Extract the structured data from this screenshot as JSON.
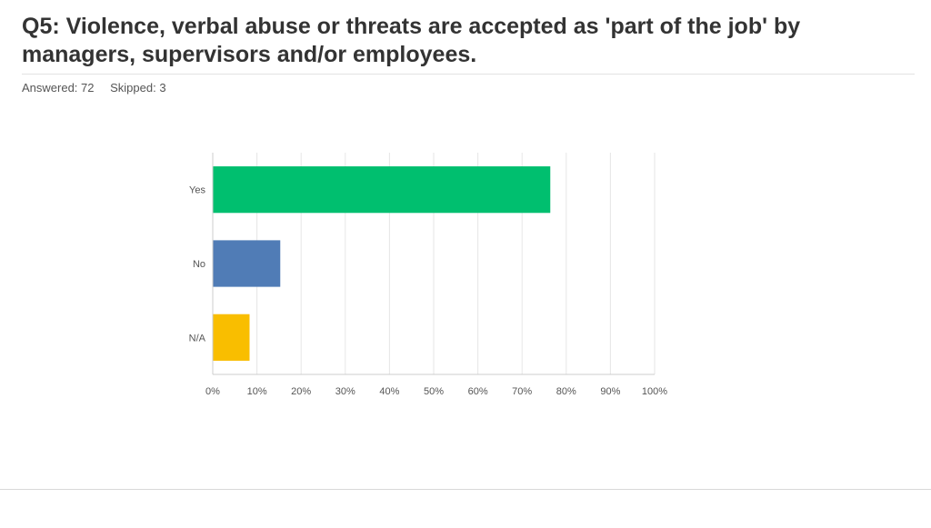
{
  "header": {
    "title": "Q5: Violence, verbal abuse or threats are accepted as 'part of the job' by managers, supervisors and/or employees.",
    "answered": "Answered: 72",
    "skipped": "Skipped: 3"
  },
  "chart_data": {
    "type": "bar",
    "orientation": "horizontal",
    "categories": [
      "Yes",
      "No",
      "N/A"
    ],
    "values": [
      76.39,
      15.28,
      8.33
    ],
    "colors": [
      "#00bf6f",
      "#507cb6",
      "#f9be00"
    ],
    "xlim": [
      0,
      100
    ],
    "ticks": [
      "0%",
      "10%",
      "20%",
      "30%",
      "40%",
      "50%",
      "60%",
      "70%",
      "80%",
      "90%",
      "100%"
    ],
    "grid": "vertical",
    "title": "",
    "xlabel": "",
    "ylabel": ""
  }
}
